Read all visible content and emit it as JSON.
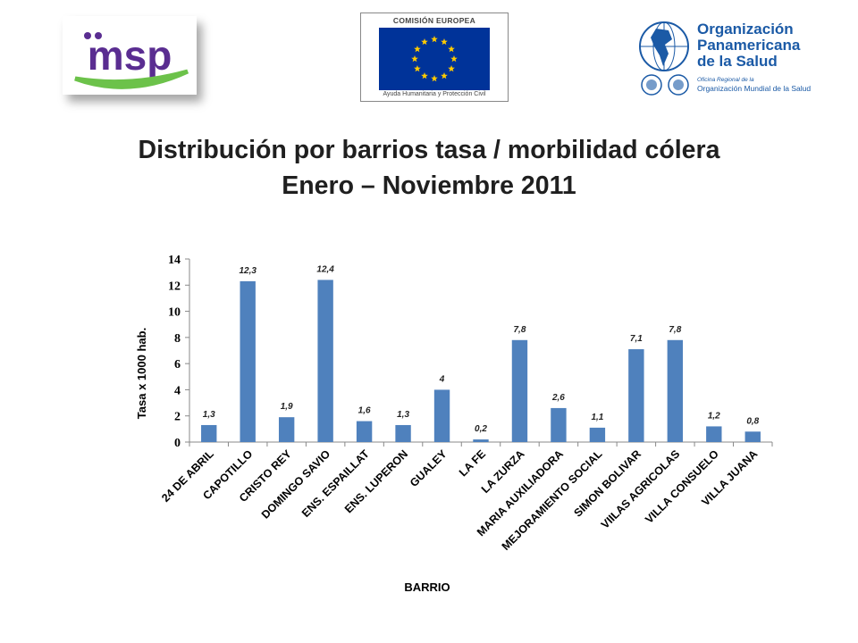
{
  "logos": {
    "msp_text": "msp",
    "ec_title": "COMISIÓN EUROPEA",
    "ec_subtitle": "Ayuda Humanitaria y Protección Civil",
    "ops_name_1": "Organización",
    "ops_name_2": "Panamericana",
    "ops_name_3": "de la Salud",
    "ops_small": "Oficina Regional de la",
    "ops_small2": "Organización Mundial de la Salud"
  },
  "title": {
    "line1": "Distribución por barrios tasa / morbilidad cólera",
    "line2": "Enero – Noviembre 2011"
  },
  "colors": {
    "bar": "#4f81bd",
    "ec_blue": "#003399",
    "ec_star": "#ffcc00",
    "msp_purple": "#5a2d91",
    "msp_green": "#6cc24a",
    "ops_blue": "#1b5aa6"
  },
  "chart_data": {
    "type": "bar",
    "categories": [
      "24 DE ABRIL",
      "CAPOTILLO",
      "CRISTO REY",
      "DOMINGO SAVIO",
      "ENS. ESPAILLAT",
      "ENS. LUPERON",
      "GUALEY",
      "LA FE",
      "LA ZURZA",
      "MARIA AUXILIADORA",
      "MEJORAMIENTO SOCIAL",
      "SIMON BOLIVAR",
      "VIILAS AGRICOLAS",
      "VILLA CONSUELO",
      "VILLA JUANA"
    ],
    "values": [
      1.3,
      12.3,
      1.9,
      12.4,
      1.6,
      1.3,
      4,
      0.2,
      7.8,
      2.6,
      1.1,
      7.1,
      7.8,
      1.2,
      0.8
    ],
    "value_labels": [
      "1,3",
      "12,3",
      "1,9",
      "12,4",
      "1,6",
      "1,3",
      "4",
      "0,2",
      "7,8",
      "2,6",
      "1,1",
      "7,1",
      "7,8",
      "1,2",
      "0,8"
    ],
    "yticks": [
      0,
      2,
      4,
      6,
      8,
      10,
      12,
      14
    ],
    "ylim": [
      0,
      14
    ],
    "xlabel": "BARRIO",
    "ylabel": "Tasa  x 1000 hab.",
    "grid": false,
    "legend": "none"
  }
}
